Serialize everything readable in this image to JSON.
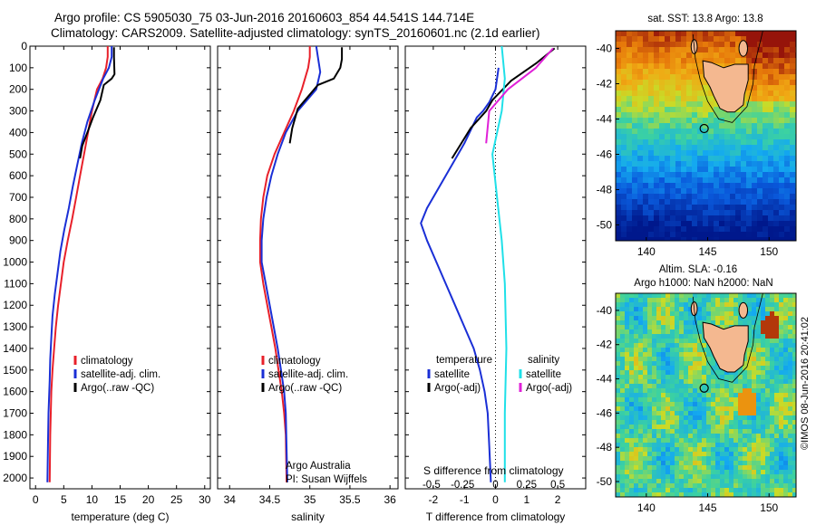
{
  "header": {
    "line1": "Argo profile: CS 5905030_75 03-Jun-2016 20160603_854 44.541S 144.714E",
    "line2": "Climatology: CARS2009. Satellite-adjusted climatology: synTS_20160601.nc (2.1d earlier)"
  },
  "stamp": "©IMOS 08-Jun-2016 20:41:02",
  "colors": {
    "climatology": "#e8202a",
    "satellite": "#1a2fd6",
    "argo": "#000000",
    "sat_salinity": "#1fe0e8",
    "argo_salinity": "#e020d8",
    "land": "#f4b890"
  },
  "chart_data": [
    {
      "type": "line",
      "panel": "temperature",
      "xlabel": "temperature (deg C)",
      "xticks": [
        0,
        5,
        10,
        15,
        20,
        25,
        30
      ],
      "xlim": [
        -1,
        31
      ],
      "ylim": [
        2050,
        0
      ],
      "yticks": [
        0,
        100,
        200,
        300,
        400,
        500,
        600,
        700,
        800,
        900,
        1000,
        1100,
        1200,
        1300,
        1400,
        1500,
        1600,
        1700,
        1800,
        1900,
        2000
      ],
      "legend": [
        "climatology",
        "satellite-adj. clim.",
        "Argo(..raw -QC)"
      ],
      "series": [
        {
          "name": "climatology",
          "x": [
            12.8,
            12.8,
            12.5,
            11.9,
            10.9,
            10.0,
            9.3,
            8.6,
            7.9,
            7.2,
            6.5,
            5.7,
            5.0,
            4.5,
            4.0,
            3.6,
            3.3,
            3.0,
            2.8,
            2.7,
            2.6,
            2.5
          ],
          "y": [
            0,
            50,
            100,
            150,
            200,
            300,
            400,
            500,
            600,
            700,
            800,
            900,
            1000,
            1100,
            1200,
            1300,
            1400,
            1500,
            1600,
            1700,
            1800,
            2020
          ]
        },
        {
          "name": "satellite-adj. clim.",
          "x": [
            13.5,
            13.5,
            13.0,
            12.0,
            10.5,
            9.2,
            8.2,
            7.4,
            6.6,
            5.9,
            5.1,
            4.4,
            3.9,
            3.4,
            3.0,
            2.8,
            2.6,
            2.5,
            2.3,
            2.2,
            2.1
          ],
          "y": [
            0,
            50,
            100,
            150,
            250,
            350,
            450,
            550,
            650,
            750,
            850,
            950,
            1050,
            1150,
            1250,
            1350,
            1450,
            1550,
            1700,
            1850,
            2020
          ]
        },
        {
          "name": "Argo(..raw -QC)",
          "x": [
            13.9,
            13.9,
            14.0,
            13.5,
            12.1,
            11.5,
            10.2,
            9.2,
            8.3,
            7.9
          ],
          "y": [
            5,
            50,
            130,
            150,
            180,
            250,
            330,
            400,
            460,
            520
          ]
        }
      ]
    },
    {
      "type": "line",
      "panel": "salinity",
      "xlabel": "salinity",
      "xticks": [
        34,
        34.5,
        35,
        35.5,
        36
      ],
      "xlim": [
        33.85,
        36.1
      ],
      "ylim": [
        2050,
        0
      ],
      "legend": [
        "climatology",
        "satellite-adj. clim.",
        "Argo(..raw -QC)"
      ],
      "annotation": [
        "Argo Australia",
        "PI: Susan Wijffels"
      ],
      "series": [
        {
          "name": "climatology",
          "x": [
            35.0,
            35.0,
            34.98,
            34.9,
            34.8,
            34.68,
            34.56,
            34.47,
            34.42,
            34.39,
            34.38,
            34.38,
            34.42,
            34.47,
            34.52,
            34.57,
            34.61,
            34.65,
            34.68,
            34.7,
            34.71
          ],
          "y": [
            0,
            50,
            100,
            200,
            300,
            400,
            500,
            600,
            700,
            800,
            900,
            1000,
            1100,
            1200,
            1300,
            1400,
            1500,
            1600,
            1700,
            1800,
            2020
          ]
        },
        {
          "name": "satellite-adj. clim.",
          "x": [
            35.08,
            35.1,
            35.13,
            35.08,
            34.85,
            34.7,
            34.6,
            34.52,
            34.46,
            34.42,
            34.4,
            34.4,
            34.45,
            34.5,
            34.55,
            34.6,
            34.64,
            34.68,
            34.7,
            34.72
          ],
          "y": [
            0,
            50,
            120,
            200,
            300,
            400,
            500,
            600,
            700,
            800,
            900,
            1000,
            1100,
            1200,
            1300,
            1400,
            1500,
            1600,
            1700,
            2020
          ]
        },
        {
          "name": "Argo(..raw -QC)",
          "x": [
            35.4,
            35.4,
            35.38,
            35.3,
            35.1,
            34.85,
            34.78,
            34.75
          ],
          "y": [
            5,
            60,
            100,
            150,
            180,
            290,
            380,
            450
          ]
        }
      ]
    },
    {
      "type": "line",
      "panel": "differences",
      "xlabel": "T difference from climatology",
      "xlabel_top": "S difference from climatology",
      "xticks": [
        -2,
        -1,
        0,
        1,
        2
      ],
      "xticks_s": [
        -0.5,
        -0.25,
        0,
        0.25,
        0.5
      ],
      "xlim": [
        -2.9,
        2.9
      ],
      "ylim": [
        2050,
        0
      ],
      "legend_titles": [
        "temperature",
        "salinity"
      ],
      "legend": [
        "satellite",
        "Argo(-adj)",
        "satellite",
        "Argo(-adj)"
      ],
      "series": [
        {
          "name": "T satellite",
          "x": [
            0.1,
            0.0,
            -0.2,
            -0.4,
            -0.6,
            -1.0,
            -1.6,
            -2.2,
            -2.4,
            -2.2,
            -1.9,
            -1.6,
            -1.3,
            -1.0,
            -0.7,
            -0.5,
            -0.35,
            -0.25,
            -0.2,
            -0.15
          ],
          "y": [
            100,
            200,
            260,
            300,
            330,
            450,
            600,
            750,
            820,
            900,
            1000,
            1100,
            1200,
            1300,
            1400,
            1500,
            1600,
            1700,
            1850,
            2020
          ]
        },
        {
          "name": "T Argo(-adj)",
          "x": [
            1.9,
            1.3,
            0.5,
            -0.1,
            -0.3,
            -0.8,
            -1.4
          ],
          "y": [
            10,
            80,
            160,
            250,
            300,
            380,
            520
          ]
        },
        {
          "name": "S satellite",
          "x": [
            0.2,
            0.3,
            0.2,
            -0.1,
            0.05,
            0.2,
            0.3,
            0.35,
            0.3,
            0.3
          ],
          "y": [
            0,
            150,
            300,
            500,
            700,
            900,
            1100,
            1400,
            1700,
            2020
          ]
        },
        {
          "name": "S Argo(-adj)",
          "x": [
            1.85,
            1.3,
            0.4,
            -0.2,
            -0.3
          ],
          "y": [
            10,
            100,
            200,
            300,
            450
          ]
        }
      ]
    }
  ],
  "maps": [
    {
      "title": "sat. SST: 13.8 Argo: 13.8",
      "xticks": [
        "140",
        "145",
        "150"
      ],
      "yticks": [
        "-40",
        "-42",
        "-44",
        "-46",
        "-48",
        "-50"
      ]
    },
    {
      "title_line1": "Altim. SLA: -0.16",
      "title_line2": "Argo h1000: NaN h2000: NaN",
      "xticks": [
        "140",
        "145",
        "150"
      ],
      "yticks": [
        "-40",
        "-42",
        "-44",
        "-46",
        "-48",
        "-50"
      ]
    }
  ]
}
